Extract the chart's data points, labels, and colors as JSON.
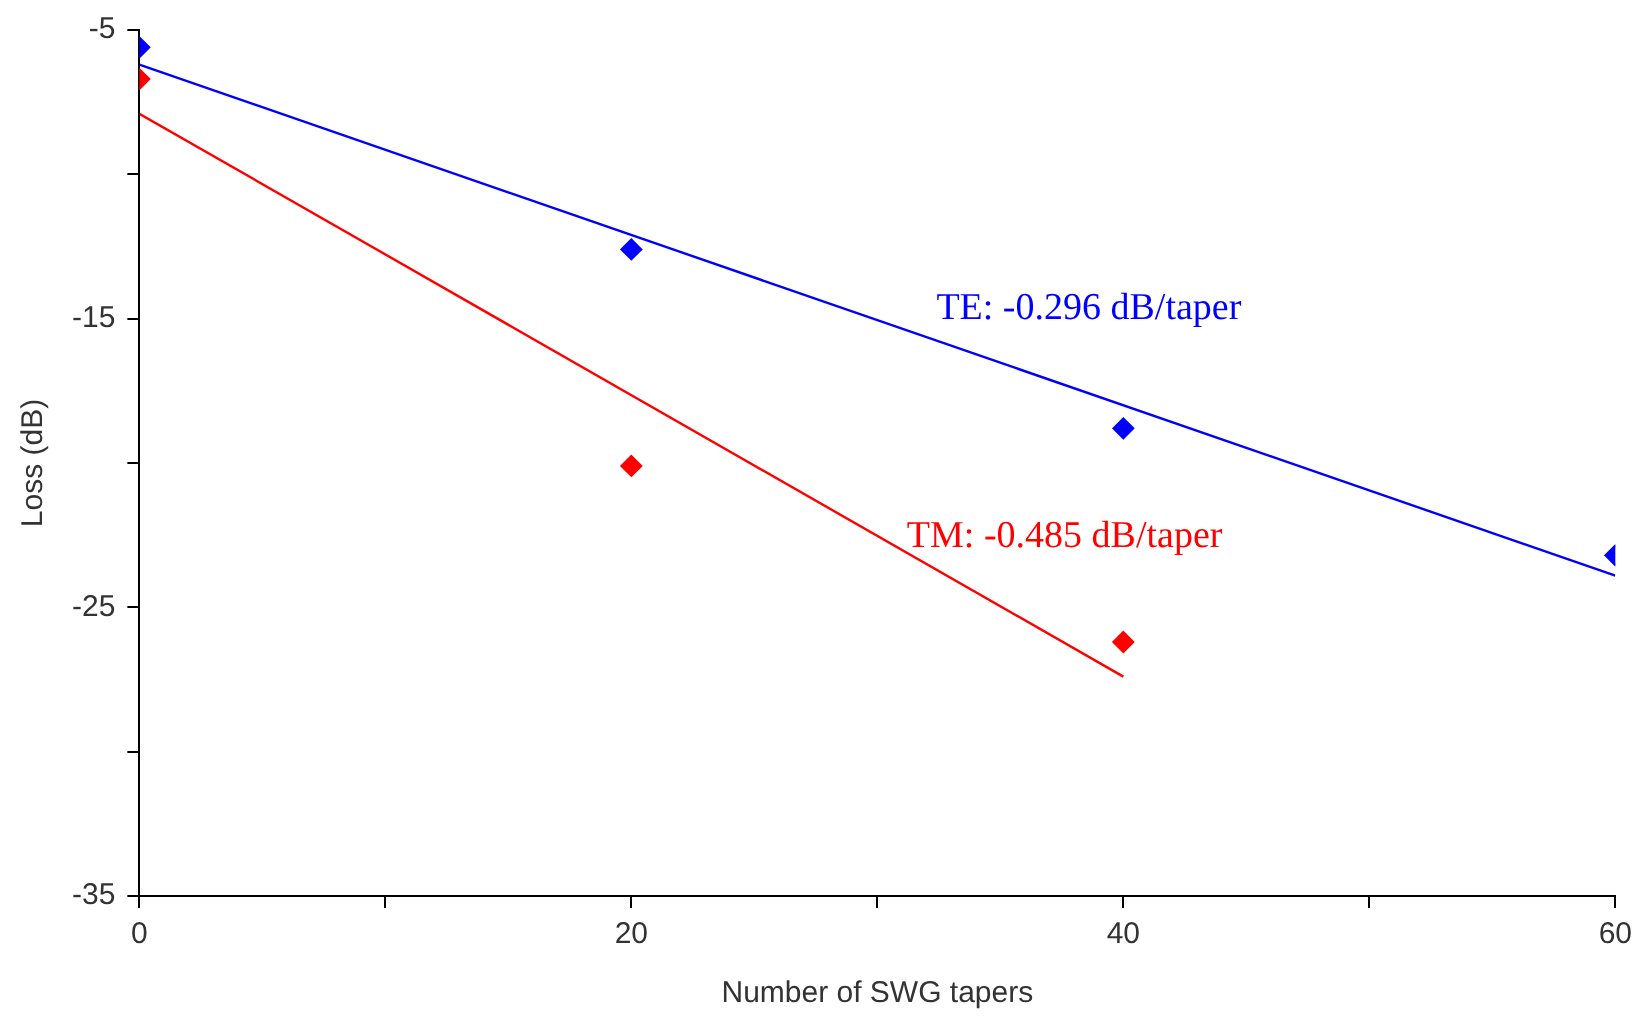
{
  "chart_data": {
    "type": "scatter",
    "xlabel": "Number of SWG tapers",
    "ylabel": "Loss (dB)",
    "xlim": [
      0,
      60
    ],
    "xticks": [
      0,
      {
        "value": 10,
        "label": null
      },
      20,
      {
        "value": 30,
        "label": null
      },
      40,
      {
        "value": 50,
        "label": null
      },
      60
    ],
    "ylim": [
      -35,
      -5
    ],
    "yticks": [
      -35,
      {
        "value": -30,
        "label": null
      },
      -25,
      {
        "value": -20,
        "label": null
      },
      -15,
      {
        "value": -10,
        "label": null
      },
      -5
    ],
    "grid": false,
    "legend": false,
    "marker": "diamond",
    "series": [
      {
        "type": "scatter",
        "color": "#0000ff",
        "x": [
          0,
          20,
          40,
          60
        ],
        "values": [
          -5.6,
          -12.6,
          -18.8,
          -23.2
        ]
      },
      {
        "type": "line",
        "color": "#0000ff",
        "marker": "none",
        "x": [
          0,
          60
        ],
        "values": [
          -6.2,
          -23.9
        ]
      },
      {
        "type": "scatter",
        "color": "#ff0000",
        "x": [
          0,
          20,
          40
        ],
        "values": [
          -6.7,
          -20.1,
          -26.2
        ]
      },
      {
        "type": "line",
        "color": "#ff0000",
        "marker": "none",
        "x": [
          0,
          40
        ],
        "values": [
          -7.9,
          -27.4
        ]
      }
    ],
    "annotations": [
      "TE: -0.296 dB/taper",
      "TM: -0.485 dB/taper"
    ]
  }
}
